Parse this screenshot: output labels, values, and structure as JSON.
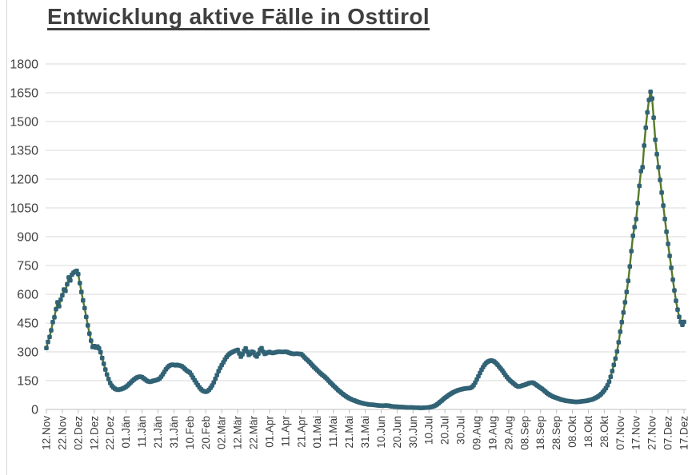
{
  "title": "Entwicklung aktive Fälle in Osttirol",
  "chart_data": {
    "type": "line",
    "title": "Entwicklung aktive Fälle in Osttirol",
    "xlabel": "",
    "ylabel": "",
    "ylim": [
      0,
      1800
    ],
    "y_ticks": [
      0,
      150,
      300,
      450,
      600,
      750,
      900,
      1050,
      1200,
      1350,
      1500,
      1650,
      1800
    ],
    "grid": "horizontal",
    "legend": "none",
    "marker": "square",
    "line_color": "#567a28",
    "marker_color": "#316275",
    "gridline_color": "#d9d9d9",
    "axis_color": "#bfbfbf",
    "label_color": "#3f3f3f",
    "x_interval_days": 1,
    "x_tick_every": 10,
    "x_tick_labels": [
      "12.Nov",
      "22.Nov",
      "02.Dez",
      "12.Dez",
      "22.Dez",
      "01.Jän",
      "11.Jän",
      "21.Jän",
      "31.Jän",
      "10.Feb",
      "20.Feb",
      "02.Mär",
      "12.Mär",
      "22.Mär",
      "01.Apr",
      "11.Apr",
      "21.Apr",
      "01.Mai",
      "11.Mai",
      "21.Mai",
      "31.Mai",
      "10.Jun",
      "20.Jun",
      "30.Jun",
      "10.Jul",
      "20.Jul",
      "30.Jul",
      "09.Aug",
      "19.Aug",
      "29.Aug",
      "08.Sep",
      "18.Sep",
      "28.Sep",
      "08.Okt",
      "18.Okt",
      "28.Okt",
      "07.Nov",
      "17.Nov",
      "27.Nov",
      "07.Dez",
      "17.Dez"
    ],
    "values": [
      320,
      352,
      378,
      412,
      455,
      480,
      522,
      558,
      538,
      572,
      595,
      625,
      618,
      652,
      688,
      672,
      702,
      712,
      718,
      722,
      705,
      658,
      612,
      568,
      528,
      482,
      438,
      395,
      358,
      325,
      330,
      322,
      328,
      318,
      298,
      268,
      238,
      208,
      182,
      158,
      138,
      124,
      114,
      108,
      104,
      102,
      104,
      106,
      109,
      113,
      118,
      125,
      133,
      141,
      149,
      156,
      162,
      167,
      170,
      171,
      168,
      162,
      156,
      150,
      146,
      144,
      146,
      149,
      151,
      153,
      156,
      161,
      171,
      183,
      196,
      209,
      219,
      227,
      231,
      233,
      232,
      230,
      232,
      230,
      228,
      225,
      218,
      210,
      203,
      197,
      192,
      180,
      166,
      152,
      139,
      127,
      115,
      105,
      98,
      94,
      92,
      95,
      102,
      112,
      125,
      141,
      159,
      179,
      199,
      216,
      231,
      246,
      260,
      273,
      283,
      291,
      296,
      300,
      304,
      307,
      310,
      292,
      275,
      287,
      305,
      318,
      301,
      284,
      291,
      301,
      297,
      283,
      276,
      291,
      311,
      319,
      301,
      289,
      293,
      297,
      299,
      296,
      294,
      296,
      298,
      300,
      301,
      300,
      299,
      300,
      301,
      299,
      296,
      293,
      291,
      289,
      290,
      291,
      290,
      289,
      287,
      280,
      271,
      263,
      255,
      247,
      238,
      229,
      220,
      212,
      204,
      196,
      188,
      181,
      174,
      167,
      159,
      150,
      141,
      133,
      125,
      117,
      109,
      101,
      94,
      87,
      80,
      74,
      68,
      63,
      58,
      54,
      50,
      47,
      44,
      41,
      38,
      35,
      33,
      31,
      29,
      28,
      26,
      25,
      25,
      24,
      23,
      22,
      21,
      20,
      20,
      19,
      20,
      21,
      20,
      19,
      17,
      16,
      15,
      14,
      14,
      13,
      13,
      12,
      12,
      11,
      11,
      10,
      10,
      10,
      10,
      9,
      9,
      9,
      8,
      8,
      8,
      9,
      9,
      10,
      10,
      12,
      14,
      17,
      21,
      26,
      32,
      39,
      46,
      53,
      60,
      66,
      72,
      78,
      83,
      88,
      92,
      96,
      99,
      102,
      104,
      106,
      108,
      109,
      110,
      111,
      112,
      117,
      126,
      140,
      156,
      173,
      190,
      207,
      221,
      233,
      243,
      249,
      253,
      255,
      253,
      249,
      242,
      233,
      223,
      213,
      203,
      191,
      179,
      168,
      158,
      150,
      143,
      136,
      129,
      123,
      119,
      120,
      123,
      126,
      128,
      131,
      134,
      137,
      139,
      140,
      136,
      130,
      124,
      118,
      112,
      107,
      100,
      93,
      86,
      80,
      75,
      70,
      66,
      63,
      60,
      57,
      54,
      51,
      49,
      47,
      45,
      44,
      43,
      42,
      41,
      40,
      39,
      39,
      40,
      41,
      42,
      43,
      44,
      45,
      47,
      49,
      51,
      54,
      58,
      62,
      67,
      73,
      80,
      89,
      99,
      111,
      126,
      145,
      170,
      200,
      232,
      265,
      302,
      350,
      405,
      455,
      505,
      558,
      612,
      670,
      745,
      825,
      905,
      950,
      992,
      1075,
      1165,
      1242,
      1262,
      1375,
      1468,
      1548,
      1612,
      1655,
      1620,
      1520,
      1405,
      1330,
      1262,
      1196,
      1130,
      1062,
      992,
      926,
      862,
      800,
      738,
      676,
      620,
      566,
      520,
      482,
      456,
      441,
      456
    ]
  }
}
